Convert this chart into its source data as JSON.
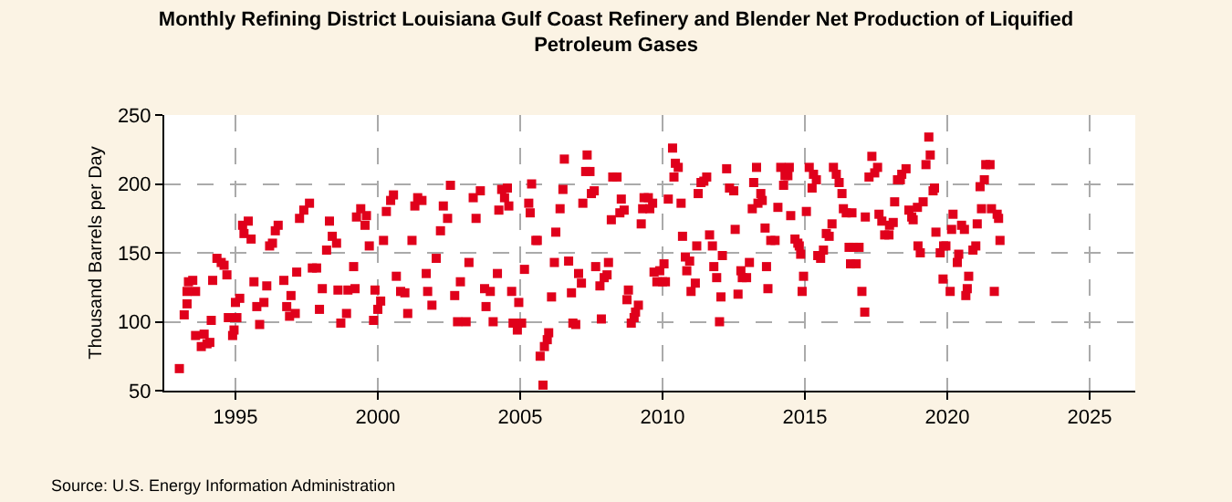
{
  "chart_data": {
    "type": "scatter",
    "title": "Monthly Refining District Louisiana Gulf Coast Refinery and Blender Net Production of Liquified Petroleum Gases",
    "ylabel": "Thousand Barrels per Day",
    "annotations": [
      "Source: U.S. Energy Information Administration"
    ],
    "xlim": [
      1992.5,
      2026.6
    ],
    "xticks": [
      1995,
      2000,
      2005,
      2010,
      2015,
      2020,
      2025
    ],
    "ylim": [
      50,
      250
    ],
    "yticks": [
      50,
      100,
      150,
      200,
      250
    ],
    "grid": true,
    "marker": "square",
    "x": [
      1993.03,
      1993.2,
      1993.3,
      1993.35,
      1993.3,
      1993.5,
      1993.6,
      1993.6,
      1993.8,
      1993.9,
      1994.0,
      1994.1,
      1994.15,
      1994.2,
      1994.35,
      1994.5,
      1994.6,
      1994.7,
      1994.75,
      1994.9,
      1994.95,
      1995.0,
      1995.05,
      1995.15,
      1995.25,
      1995.3,
      1995.45,
      1995.55,
      1995.65,
      1995.75,
      1995.85,
      1996.0,
      1996.1,
      1996.2,
      1996.3,
      1996.4,
      1996.5,
      1996.7,
      1996.8,
      1996.9,
      1996.95,
      1997.1,
      1997.15,
      1997.25,
      1997.4,
      1997.6,
      1997.7,
      1997.85,
      1997.95,
      1998.05,
      1998.2,
      1998.3,
      1998.4,
      1998.55,
      1998.6,
      1998.7,
      1998.9,
      1998.95,
      1999.15,
      1999.2,
      1999.25,
      1999.4,
      1999.55,
      1999.6,
      1999.7,
      1999.85,
      1999.9,
      2000.0,
      2000.1,
      2000.2,
      2000.3,
      2000.45,
      2000.55,
      2000.65,
      2000.8,
      2000.95,
      2001.05,
      2001.2,
      2001.3,
      2001.4,
      2001.55,
      2001.7,
      2001.75,
      2001.9,
      2002.05,
      2002.2,
      2002.3,
      2002.45,
      2002.55,
      2002.7,
      2002.8,
      2002.9,
      2003.1,
      2003.2,
      2003.35,
      2003.45,
      2003.6,
      2003.75,
      2003.8,
      2003.95,
      2004.05,
      2004.2,
      2004.25,
      2004.35,
      2004.45,
      2004.55,
      2004.6,
      2004.7,
      2004.75,
      2004.9,
      2004.95,
      2005.05,
      2005.15,
      2005.3,
      2005.35,
      2005.4,
      2005.55,
      2005.6,
      2005.7,
      2005.8,
      2005.85,
      2005.95,
      2006.0,
      2006.1,
      2006.2,
      2006.25,
      2006.4,
      2006.5,
      2006.55,
      2006.7,
      2006.8,
      2006.85,
      2006.95,
      2007.05,
      2007.15,
      2007.2,
      2007.3,
      2007.35,
      2007.45,
      2007.5,
      2007.6,
      2007.65,
      2007.8,
      2007.85,
      2007.95,
      2008.05,
      2008.1,
      2008.2,
      2008.25,
      2008.4,
      2008.5,
      2008.55,
      2008.65,
      2008.75,
      2008.8,
      2008.9,
      2009.0,
      2009.05,
      2009.15,
      2009.25,
      2009.3,
      2009.35,
      2009.5,
      2009.55,
      2009.65,
      2009.7,
      2009.8,
      2009.9,
      2010.0,
      2010.05,
      2010.1,
      2010.2,
      2010.35,
      2010.4,
      2010.45,
      2010.55,
      2010.65,
      2010.7,
      2010.8,
      2010.85,
      2010.95,
      2011.0,
      2011.15,
      2011.2,
      2011.25,
      2011.35,
      2011.45,
      2011.55,
      2011.65,
      2011.75,
      2011.8,
      2011.9,
      2012.0,
      2012.05,
      2012.1,
      2012.25,
      2012.35,
      2012.5,
      2012.55,
      2012.65,
      2012.75,
      2012.8,
      2012.95,
      2013.05,
      2013.15,
      2013.2,
      2013.3,
      2013.35,
      2013.45,
      2013.5,
      2013.6,
      2013.65,
      2013.7,
      2013.8,
      2013.95,
      2014.05,
      2014.15,
      2014.25,
      2014.3,
      2014.4,
      2014.45,
      2014.5,
      2014.65,
      2014.75,
      2014.8,
      2014.85,
      2014.9,
      2014.95,
      2015.05,
      2015.15,
      2015.25,
      2015.3,
      2015.4,
      2015.45,
      2015.55,
      2015.65,
      2015.75,
      2015.85,
      2015.95,
      2016.0,
      2016.1,
      2016.2,
      2016.3,
      2016.35,
      2016.45,
      2016.55,
      2016.6,
      2016.65,
      2016.7,
      2016.8,
      2016.9,
      2017.0,
      2017.1,
      2017.12,
      2017.25,
      2017.35,
      2017.45,
      2017.55,
      2017.6,
      2017.7,
      2017.8,
      2017.95,
      2017.97,
      2018.1,
      2018.15,
      2018.25,
      2018.35,
      2018.4,
      2018.55,
      2018.65,
      2018.75,
      2018.8,
      2018.95,
      2018.97,
      2019.05,
      2019.15,
      2019.25,
      2019.35,
      2019.4,
      2019.5,
      2019.55,
      2019.6,
      2019.75,
      2019.85,
      2019.87,
      2019.95,
      2020.1,
      2020.15,
      2020.2,
      2020.35,
      2020.4,
      2020.5,
      2020.6,
      2020.65,
      2020.7,
      2020.75,
      2020.9,
      2021.0,
      2021.05,
      2021.15,
      2021.2,
      2021.3,
      2021.35,
      2021.5,
      2021.55,
      2021.65,
      2021.75,
      2021.8,
      2021.85
    ],
    "series": [
      {
        "color": "#e0001b",
        "values": [
          66,
          105,
          122,
          129,
          113,
          130,
          122,
          90,
          82,
          91,
          84,
          85,
          101,
          130,
          146,
          143,
          141,
          134,
          103,
          90,
          94,
          114,
          103,
          117,
          170,
          164,
          173,
          160,
          129,
          111,
          98,
          114,
          126,
          155,
          157,
          166,
          170,
          130,
          111,
          104,
          119,
          106,
          136,
          175,
          181,
          186,
          139,
          139,
          109,
          124,
          152,
          173,
          162,
          157,
          123,
          99,
          106,
          123,
          140,
          124,
          176,
          182,
          170,
          177,
          155,
          101,
          123,
          109,
          115,
          159,
          180,
          188,
          192,
          133,
          122,
          121,
          106,
          159,
          184,
          190,
          188,
          135,
          122,
          112,
          146,
          166,
          184,
          175,
          199,
          119,
          100,
          129,
          100,
          143,
          190,
          175,
          195,
          124,
          111,
          122,
          100,
          135,
          181,
          196,
          190,
          197,
          184,
          122,
          99,
          94,
          114,
          99,
          138,
          186,
          179,
          200,
          159,
          159,
          75,
          54,
          82,
          87,
          92,
          118,
          143,
          165,
          182,
          196,
          218,
          144,
          121,
          99,
          98,
          135,
          128,
          186,
          209,
          221,
          209,
          193,
          195,
          140,
          126,
          102,
          132,
          134,
          143,
          174,
          205,
          205,
          179,
          189,
          181,
          116,
          123,
          99,
          103,
          107,
          112,
          171,
          182,
          190,
          190,
          182,
          186,
          136,
          129,
          137,
          129,
          142,
          129,
          189,
          226,
          205,
          215,
          212,
          186,
          162,
          147,
          137,
          144,
          122,
          128,
          155,
          193,
          201,
          202,
          205,
          163,
          155,
          140,
          132,
          100,
          118,
          148,
          211,
          197,
          195,
          167,
          120,
          137,
          132,
          132,
          143,
          182,
          201,
          212,
          186,
          193,
          188,
          168,
          140,
          124,
          159,
          159,
          183,
          212,
          199,
          206,
          206,
          212,
          177,
          160,
          157,
          155,
          149,
          122,
          133,
          180,
          212,
          197,
          207,
          203,
          148,
          146,
          152,
          164,
          162,
          171,
          212,
          207,
          201,
          193,
          182,
          179,
          154,
          142,
          179,
          154,
          142,
          154,
          122,
          107,
          176,
          205,
          220,
          208,
          212,
          178,
          173,
          163,
          163,
          170,
          172,
          187,
          203,
          203,
          207,
          211,
          181,
          176,
          174,
          183,
          155,
          150,
          187,
          214,
          234,
          221,
          195,
          197,
          165,
          150,
          131,
          155,
          155,
          122,
          167,
          178,
          143,
          149,
          170,
          167,
          119,
          124,
          133,
          152,
          155,
          171,
          198,
          182,
          203,
          214,
          214,
          182,
          122,
          178,
          175,
          159
        ]
      }
    ]
  }
}
